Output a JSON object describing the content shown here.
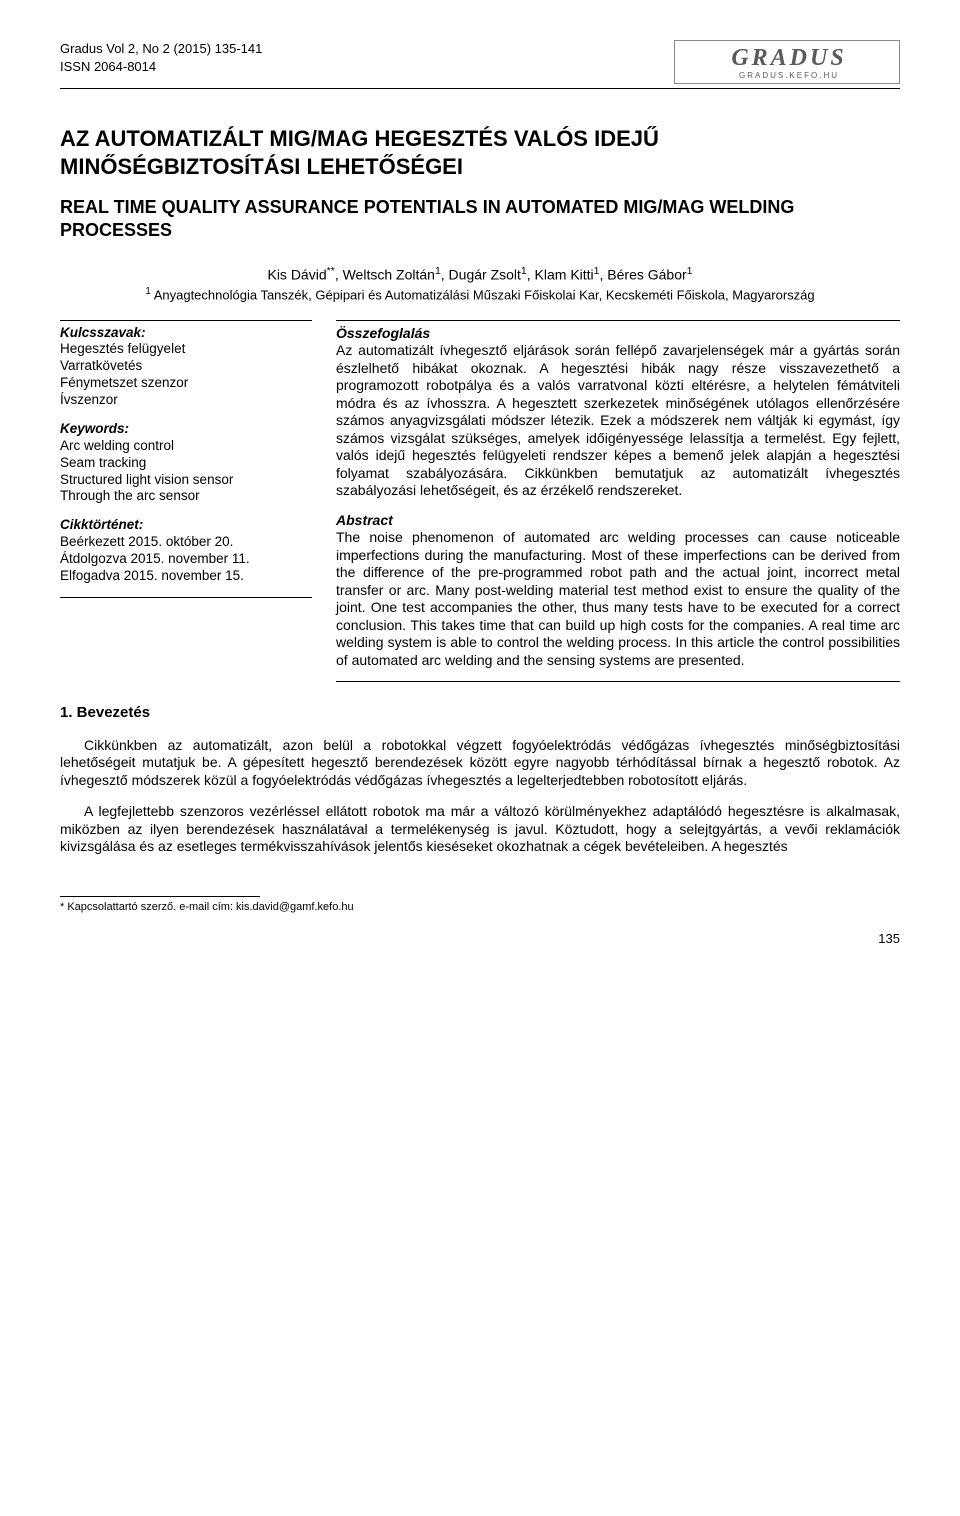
{
  "header": {
    "journal_line1": "Gradus Vol 2, No 2 (2015) 135-141",
    "journal_line2": "ISSN 2064-8014",
    "logo_main": "GRADUS",
    "logo_sub": "GRADUS.KEFO.HU"
  },
  "title_hu": "AZ AUTOMATIZÁLT MIG/MAG HEGESZTÉS VALÓS IDEJŰ MINŐSÉGBIZTOSÍTÁSI LEHETŐSÉGEI",
  "title_en": "REAL TIME QUALITY ASSURANCE POTENTIALS IN AUTOMATED MIG/MAG WELDING PROCESSES",
  "authors_html": "Kis Dávid<sup>**</sup>, Weltsch Zoltán<sup>1</sup>, Dugár Zsolt<sup>1</sup>, Klam Kitti<sup>1</sup>, Béres Gábor<sup>1</sup>",
  "affil_html": "<sup>1</sup> Anyagtechnológia Tanszék, Gépipari és Automatizálási Műszaki Főiskolai Kar, Kecskeméti Főiskola, Magyarország",
  "left": {
    "kulcsszavak_label": "Kulcsszavak:",
    "kulcsszavak": [
      "Hegesztés felügyelet",
      "Varratkövetés",
      "Fénymetszet szenzor",
      "Ívszenzor"
    ],
    "keywords_label": "Keywords:",
    "keywords": [
      "Arc welding control",
      "Seam tracking",
      "Structured light vision sensor",
      "Through the arc sensor"
    ],
    "cikk_label": "Cikktörténet:",
    "cikk": [
      "Beérkezett 2015. október 20.",
      "Átdolgozva 2015. november 11.",
      "Elfogadva 2015. november 15."
    ]
  },
  "right": {
    "ossz_label": "Összefoglalás",
    "ossz_text": "Az automatizált ívhegesztő eljárások során fellépő zavarjelenségek már a gyártás során észlelhető hibákat okoznak. A hegesztési hibák nagy része visszavezethető a programozott robotpálya és a valós varratvonal közti eltérésre, a helytelen fémátviteli módra és az ívhosszra. A hegesztett szerkezetek minőségének utólagos ellenőrzésére számos anyagvizsgálati módszer létezik. Ezek a módszerek nem váltják ki egymást, így számos vizsgálat szükséges, amelyek időigényessége lelassítja a termelést. Egy fejlett, valós idejű hegesztés felügyeleti rendszer képes a bemenő jelek alapján a hegesztési folyamat szabályozására. Cikkünkben bemutatjuk az automatizált ívhegesztés szabályozási lehetőségeit, és az érzékelő rendszereket.",
    "abs_label": "Abstract",
    "abs_text": "The noise phenomenon of automated arc welding processes can cause noticeable imperfections during the manufacturing. Most of these imperfections can be derived from the difference of the pre-programmed robot path and the actual joint, incorrect metal transfer or arc. Many post-welding material test method exist to ensure the quality of the joint. One test accompanies the other, thus many tests have to be executed for a correct conclusion. This takes time that can build up high costs for the companies. A real time arc welding system is able to control the welding process. In this article the control possibilities of automated arc welding and the sensing systems are presented."
  },
  "section1_h": "1. Bevezetés",
  "section1_p1": "Cikkünkben az automatizált, azon belül a robotokkal végzett fogyóelektródás védőgázas ívhegesztés minőségbiztosítási lehetőségeit mutatjuk be. A gépesített hegesztő berendezések között egyre nagyobb térhódítással bírnak a hegesztő robotok. Az ívhegesztő módszerek közül a fogyóelektródás védőgázas ívhegesztés a legelterjedtebben robotosított eljárás.",
  "section1_p2": "A legfejlettebb szenzoros vezérléssel ellátott robotok ma már a változó körülményekhez adaptálódó hegesztésre is alkalmasak, miközben az ilyen berendezések használatával a termelékenység is javul. Köztudott, hogy a selejtgyártás, a vevői reklamációk kivizsgálása és az esetleges termékvisszahívások jelentős kieséseket okozhatnak a cégek bevételeiben. A hegesztés",
  "footnote": "* Kapcsolattartó szerző. e-mail cím: kis.david@gamf.kefo.hu",
  "page_number": "135"
}
